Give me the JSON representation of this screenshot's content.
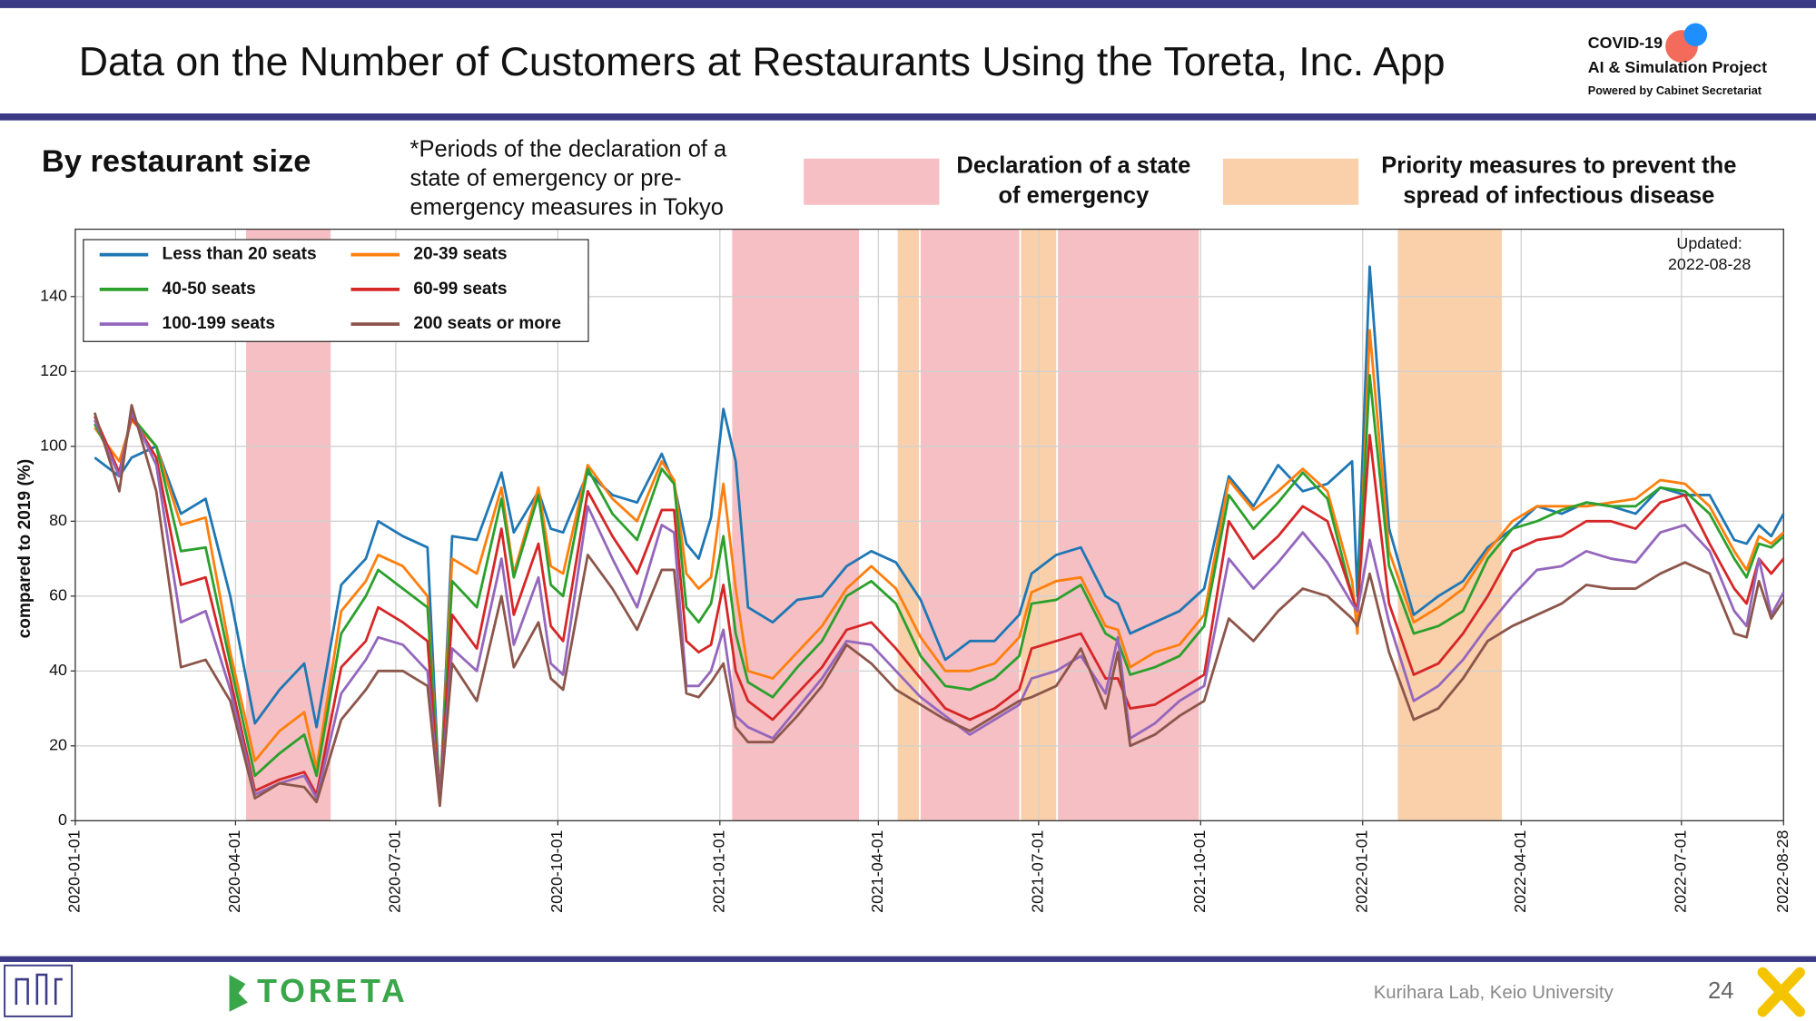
{
  "header": {
    "title": "Data on the Number of Customers at Restaurants Using the Toreta, Inc. App",
    "logo": [
      "COVID-19",
      "AI & Simulation Project",
      "Powered by Cabinet Secretariat"
    ]
  },
  "chart_data": {
    "type": "line",
    "subtitle": "By restaurant size",
    "note": [
      "*Periods of the declaration of a",
      "state of emergency or pre-",
      "emergency measures in Tokyo"
    ],
    "emergency_label": [
      "Declaration of a state",
      "of emergency"
    ],
    "priority_label": [
      "Priority measures to prevent the",
      "spread of infectious disease"
    ],
    "updated": [
      "Updated:",
      "2022-08-28"
    ],
    "ylabel": "compared to 2019 (%)",
    "legend": "upper left",
    "grid": true,
    "xlim": [
      "2020-01-01",
      "2022-08-28"
    ],
    "xticks": [
      "2020-01-01",
      "2020-04-01",
      "2020-07-01",
      "2020-10-01",
      "2021-01-01",
      "2021-04-01",
      "2021-07-01",
      "2021-10-01",
      "2022-01-01",
      "2022-04-01",
      "2022-07-01",
      "2022-08-28"
    ],
    "ylim": [
      0,
      158
    ],
    "yticks": [
      0,
      20,
      40,
      60,
      80,
      100,
      120,
      140
    ],
    "emergency_periods": [
      [
        "2020-04-07",
        "2020-05-25"
      ],
      [
        "2021-01-08",
        "2021-03-21"
      ],
      [
        "2021-04-25",
        "2021-06-20"
      ],
      [
        "2021-07-12",
        "2021-09-30"
      ]
    ],
    "emergency_color": "#f6bfc3",
    "priority_periods": [
      [
        "2021-04-12",
        "2021-04-24"
      ],
      [
        "2021-06-21",
        "2021-07-11"
      ],
      [
        "2022-01-21",
        "2022-03-21"
      ]
    ],
    "priority_color": "#f9d0aa",
    "x": [
      "2020-01-12",
      "2020-01-26",
      "2020-02-02",
      "2020-02-16",
      "2020-03-01",
      "2020-03-15",
      "2020-03-29",
      "2020-04-12",
      "2020-04-26",
      "2020-05-10",
      "2020-05-17",
      "2020-05-31",
      "2020-06-14",
      "2020-06-21",
      "2020-07-05",
      "2020-07-19",
      "2020-07-26",
      "2020-08-02",
      "2020-08-16",
      "2020-08-30",
      "2020-09-06",
      "2020-09-20",
      "2020-09-27",
      "2020-10-04",
      "2020-10-18",
      "2020-11-01",
      "2020-11-15",
      "2020-11-29",
      "2020-12-06",
      "2020-12-13",
      "2020-12-20",
      "2020-12-27",
      "2021-01-03",
      "2021-01-10",
      "2021-01-17",
      "2021-01-31",
      "2021-02-14",
      "2021-02-28",
      "2021-03-14",
      "2021-03-28",
      "2021-04-11",
      "2021-04-25",
      "2021-05-09",
      "2021-05-23",
      "2021-06-06",
      "2021-06-20",
      "2021-06-27",
      "2021-07-11",
      "2021-07-25",
      "2021-08-08",
      "2021-08-15",
      "2021-08-22",
      "2021-09-05",
      "2021-09-19",
      "2021-10-03",
      "2021-10-17",
      "2021-10-31",
      "2021-11-14",
      "2021-11-28",
      "2021-12-12",
      "2021-12-26",
      "2021-12-29",
      "2022-01-05",
      "2022-01-16",
      "2022-01-30",
      "2022-02-13",
      "2022-02-27",
      "2022-03-13",
      "2022-03-27",
      "2022-04-10",
      "2022-04-24",
      "2022-05-08",
      "2022-05-22",
      "2022-06-05",
      "2022-06-19",
      "2022-07-03",
      "2022-07-17",
      "2022-07-31",
      "2022-08-07",
      "2022-08-14",
      "2022-08-21",
      "2022-08-28"
    ],
    "series": [
      {
        "name": "Less than 20 seats",
        "color": "#1f77b4",
        "values": [
          97,
          92,
          97,
          100,
          82,
          86,
          60,
          26,
          35,
          42,
          25,
          63,
          70,
          80,
          76,
          73,
          5,
          76,
          75,
          93,
          77,
          88,
          78,
          77,
          93,
          87,
          85,
          98,
          90,
          74,
          70,
          81,
          110,
          96,
          57,
          53,
          59,
          60,
          68,
          72,
          69,
          59,
          43,
          48,
          48,
          55,
          66,
          71,
          73,
          60,
          58,
          50,
          53,
          56,
          62,
          92,
          84,
          95,
          88,
          90,
          96,
          60,
          148,
          78,
          55,
          60,
          64,
          73,
          78,
          84,
          82,
          85,
          84,
          82,
          89,
          87,
          87,
          75,
          74,
          79,
          76,
          82
        ]
      },
      {
        "name": "20-39 seats",
        "color": "#ff7f0e",
        "values": [
          105,
          96,
          107,
          100,
          79,
          81,
          45,
          16,
          24,
          29,
          14,
          56,
          64,
          71,
          68,
          60,
          5,
          70,
          66,
          89,
          66,
          89,
          68,
          66,
          95,
          86,
          80,
          96,
          91,
          66,
          62,
          65,
          90,
          62,
          40,
          38,
          45,
          52,
          62,
          68,
          62,
          49,
          40,
          40,
          42,
          49,
          61,
          64,
          65,
          52,
          51,
          41,
          45,
          47,
          55,
          91,
          83,
          88,
          94,
          88,
          64,
          50,
          131,
          72,
          53,
          57,
          62,
          72,
          80,
          84,
          84,
          84,
          85,
          86,
          91,
          90,
          84,
          72,
          67,
          76,
          74,
          77
        ]
      },
      {
        "name": "40-50 seats",
        "color": "#2ca02c",
        "values": [
          106,
          93,
          108,
          100,
          72,
          73,
          42,
          12,
          18,
          23,
          12,
          50,
          60,
          67,
          62,
          57,
          5,
          64,
          57,
          86,
          65,
          87,
          63,
          60,
          94,
          82,
          75,
          94,
          90,
          57,
          53,
          58,
          76,
          50,
          37,
          33,
          41,
          48,
          60,
          64,
          58,
          44,
          36,
          35,
          38,
          44,
          58,
          59,
          63,
          50,
          48,
          39,
          41,
          44,
          52,
          87,
          78,
          85,
          93,
          86,
          60,
          56,
          119,
          68,
          50,
          52,
          56,
          70,
          78,
          80,
          83,
          85,
          84,
          84,
          89,
          88,
          82,
          70,
          65,
          74,
          73,
          76
        ]
      },
      {
        "name": "60-99 seats",
        "color": "#d62728",
        "values": [
          108,
          93,
          108,
          97,
          63,
          65,
          38,
          8,
          11,
          13,
          7,
          41,
          48,
          57,
          53,
          48,
          5,
          55,
          46,
          78,
          55,
          74,
          52,
          48,
          88,
          76,
          66,
          83,
          83,
          48,
          45,
          47,
          63,
          40,
          32,
          27,
          34,
          41,
          51,
          53,
          46,
          38,
          30,
          27,
          30,
          35,
          46,
          48,
          50,
          38,
          38,
          30,
          31,
          35,
          39,
          80,
          70,
          76,
          84,
          80,
          60,
          56,
          103,
          58,
          39,
          42,
          50,
          60,
          72,
          75,
          76,
          80,
          80,
          78,
          85,
          87,
          74,
          62,
          58,
          70,
          66,
          70
        ]
      },
      {
        "name": "100-199 seats",
        "color": "#9467bd",
        "values": [
          107,
          92,
          109,
          95,
          53,
          56,
          35,
          7,
          10,
          12,
          6,
          34,
          43,
          49,
          47,
          40,
          5,
          46,
          40,
          70,
          47,
          65,
          42,
          39,
          84,
          70,
          57,
          79,
          77,
          36,
          36,
          40,
          51,
          28,
          25,
          22,
          30,
          38,
          48,
          47,
          40,
          33,
          28,
          23,
          27,
          31,
          38,
          40,
          44,
          34,
          49,
          22,
          26,
          32,
          36,
          70,
          62,
          69,
          77,
          69,
          58,
          56,
          75,
          53,
          32,
          36,
          43,
          52,
          60,
          67,
          68,
          72,
          70,
          69,
          77,
          79,
          72,
          56,
          52,
          70,
          55,
          61
        ]
      },
      {
        "name": "200 seats or more",
        "color": "#8c564b",
        "values": [
          109,
          88,
          111,
          88,
          41,
          43,
          32,
          6,
          10,
          9,
          5,
          27,
          35,
          40,
          40,
          36,
          4,
          42,
          32,
          60,
          41,
          53,
          38,
          35,
          71,
          62,
          51,
          67,
          67,
          34,
          33,
          37,
          42,
          25,
          21,
          21,
          28,
          36,
          47,
          42,
          35,
          31,
          27,
          24,
          28,
          32,
          33,
          36,
          46,
          30,
          45,
          20,
          23,
          28,
          32,
          54,
          48,
          56,
          62,
          60,
          54,
          52,
          66,
          45,
          27,
          30,
          38,
          48,
          52,
          55,
          58,
          63,
          62,
          62,
          66,
          69,
          66,
          50,
          49,
          64,
          54,
          59
        ]
      }
    ]
  },
  "footer": {
    "brand": "TORETA",
    "lab": "Kurihara Lab, Keio University",
    "page": "24"
  }
}
